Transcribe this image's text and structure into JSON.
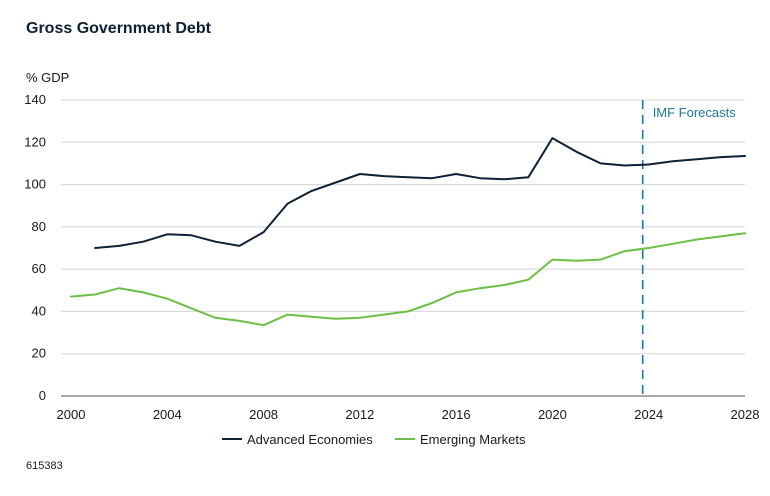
{
  "chart_data": {
    "type": "line",
    "title": "Gross Government Debt",
    "ylabel": "% GDP",
    "xlabel": "",
    "xlim": [
      2000,
      2028
    ],
    "ylim": [
      0,
      140
    ],
    "x_ticks": [
      "2000",
      "2004",
      "2008",
      "2012",
      "2016",
      "2020",
      "2024",
      "2028"
    ],
    "y_ticks": [
      "0",
      "20",
      "40",
      "60",
      "80",
      "100",
      "120",
      "140"
    ],
    "grid": "horizontal",
    "legend_position": "bottom",
    "series": [
      {
        "name": "Advanced Economies",
        "color": "#0d2137",
        "x": [
          2001,
          2002,
          2003,
          2004,
          2005,
          2006,
          2007,
          2008,
          2009,
          2010,
          2011,
          2012,
          2013,
          2014,
          2015,
          2016,
          2017,
          2018,
          2019,
          2020,
          2021,
          2022,
          2023,
          2024,
          2025,
          2026,
          2027,
          2028
        ],
        "values": [
          70,
          71,
          73,
          76.5,
          76,
          73,
          71,
          77.5,
          91,
          97,
          101,
          105,
          104,
          103.5,
          103,
          105,
          103,
          102.5,
          103.5,
          122,
          115.5,
          110,
          109,
          109.5,
          111,
          112,
          113,
          113.5
        ]
      },
      {
        "name": "Emerging Markets",
        "color": "#6cbf45",
        "x": [
          2000,
          2001,
          2002,
          2003,
          2004,
          2005,
          2006,
          2007,
          2008,
          2009,
          2010,
          2011,
          2012,
          2013,
          2014,
          2015,
          2016,
          2017,
          2018,
          2019,
          2020,
          2021,
          2022,
          2023,
          2024,
          2025,
          2026,
          2027,
          2028
        ],
        "values": [
          47,
          48,
          51,
          49,
          46,
          41.5,
          37,
          35.5,
          33.5,
          38.5,
          37.5,
          36.5,
          37,
          38.5,
          40,
          44,
          49,
          51,
          52.5,
          55,
          64.5,
          64,
          64.5,
          68.5,
          70,
          72,
          74,
          75.5,
          77
        ]
      }
    ],
    "annotations": [
      {
        "text": "IMF Forecasts",
        "x": 2023.75,
        "style": "dashed-vertical",
        "color": "#1a7a9c"
      }
    ]
  },
  "footnote": "615383"
}
